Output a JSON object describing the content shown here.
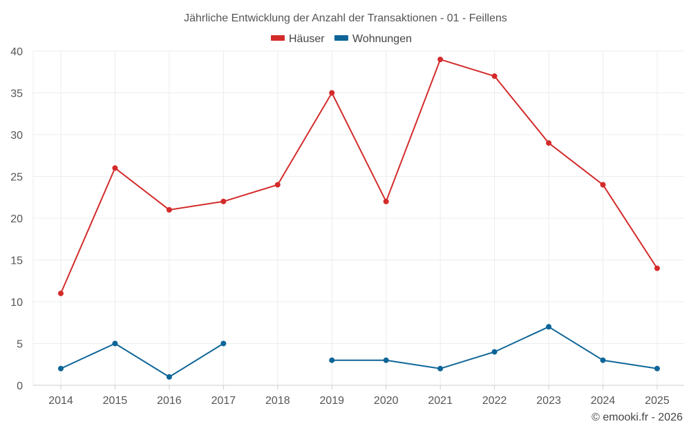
{
  "chart_data": {
    "type": "line",
    "title": "Jährliche Entwicklung der Anzahl der Transaktionen - 01 - Feillens",
    "xlabel": "",
    "ylabel": "",
    "categories": [
      "2014",
      "2015",
      "2016",
      "2017",
      "2018",
      "2019",
      "2020",
      "2021",
      "2022",
      "2023",
      "2024",
      "2025"
    ],
    "ylim": [
      0,
      40
    ],
    "yticks": [
      0,
      5,
      10,
      15,
      20,
      25,
      30,
      35,
      40
    ],
    "grid": true,
    "legend_position": "top-center",
    "series": [
      {
        "name": "Häuser",
        "color": "#d42a2a",
        "values": [
          11,
          26,
          21,
          22,
          24,
          35,
          22,
          39,
          37,
          29,
          24,
          14
        ]
      },
      {
        "name": "Wohnungen",
        "color": "#0e6598",
        "values": [
          2,
          5,
          1,
          5,
          null,
          3,
          3,
          2,
          4,
          7,
          3,
          2
        ]
      }
    ]
  },
  "footer": {
    "credit": "© emooki.fr - 2026"
  }
}
